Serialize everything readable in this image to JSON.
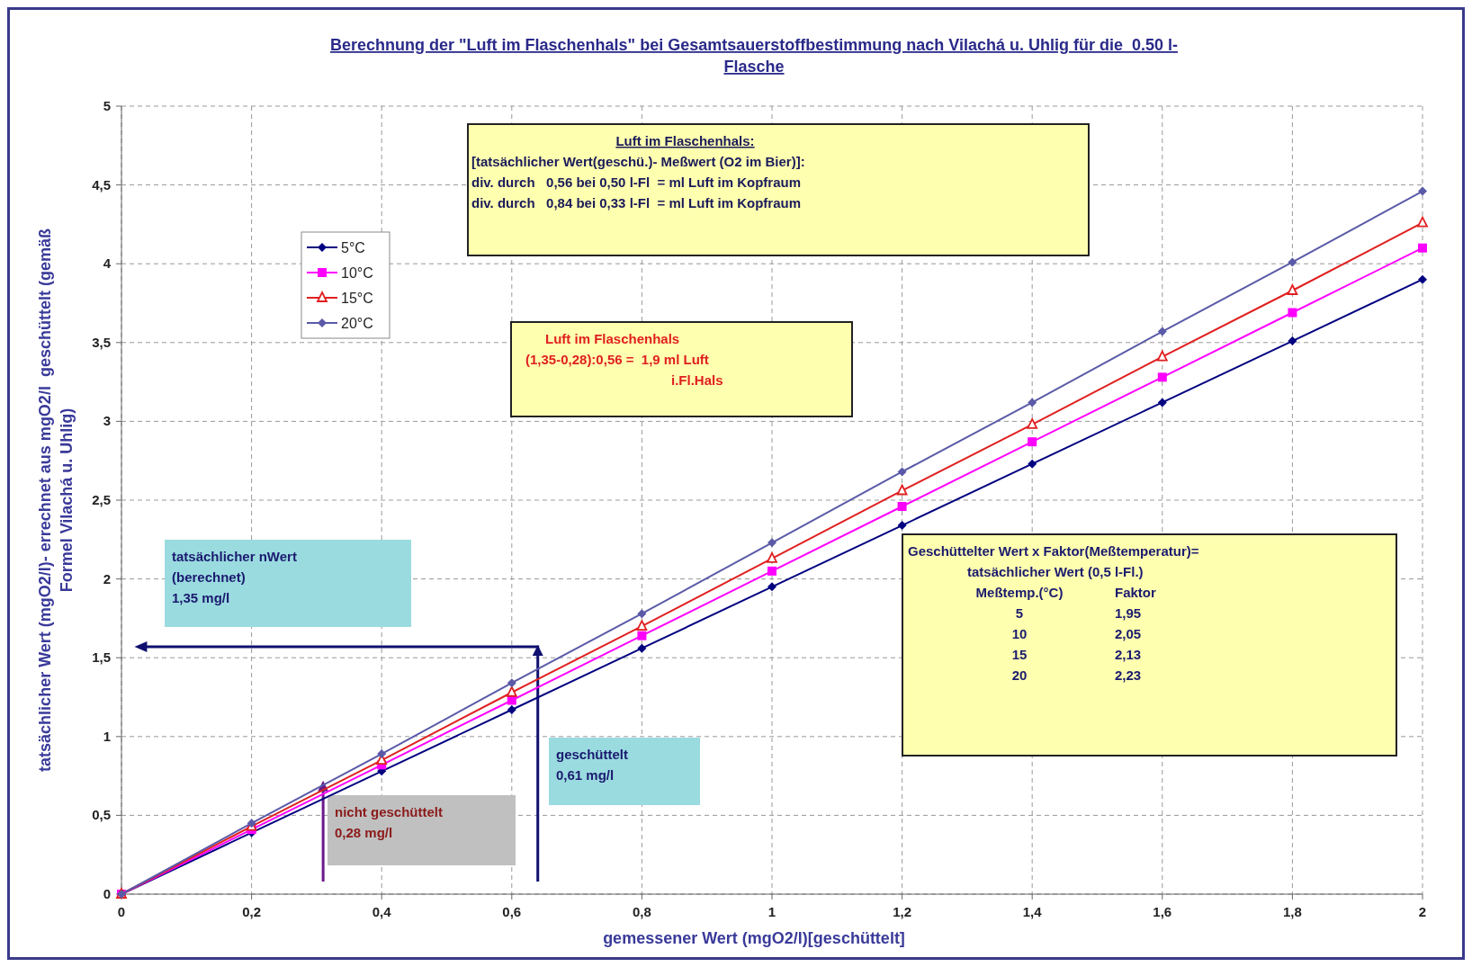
{
  "chart_data": {
    "type": "line",
    "title": "Berechnung der \"Luft im Flaschenhals\" bei Gesamtsauerstoffbestimmung nach Vilachá u. Uhlig für die  0.50 l-Flasche",
    "xlabel": "gemessener Wert (mgO2/l)[geschüttelt]",
    "ylabel": "tatsächlicher Wert (mgO2/l)- errechnet aus mgO2/l  geschüttelt (gemäß Formel Vilachá u. Uhlig)",
    "x": [
      0,
      0.2,
      0.4,
      0.6,
      0.8,
      1,
      1.2,
      1.4,
      1.6,
      1.8,
      2
    ],
    "series": [
      {
        "name": "5°C",
        "color": "#000080",
        "marker": "diamond",
        "values": [
          0,
          0.39,
          0.78,
          1.17,
          1.56,
          1.95,
          2.34,
          2.73,
          3.12,
          3.51,
          3.9
        ]
      },
      {
        "name": "10°C",
        "color": "#ff00ff",
        "marker": "square",
        "values": [
          0,
          0.41,
          0.82,
          1.23,
          1.64,
          2.05,
          2.46,
          2.87,
          3.28,
          3.69,
          4.1
        ]
      },
      {
        "name": "15°C",
        "color": "#e02020",
        "marker": "triangle",
        "values": [
          0,
          0.43,
          0.85,
          1.28,
          1.7,
          2.13,
          2.56,
          2.98,
          3.41,
          3.83,
          4.26
        ]
      },
      {
        "name": "20°C",
        "color": "#5a5aa8",
        "marker": "diamond",
        "values": [
          0,
          0.45,
          0.89,
          1.34,
          1.78,
          2.23,
          2.68,
          3.12,
          3.57,
          4.01,
          4.46
        ]
      }
    ],
    "xlim": [
      0,
      2
    ],
    "xticks": [
      0,
      {
        "value": 0.2,
        "label": "0,2"
      },
      {
        "value": 0.4,
        "label": "0,4"
      },
      {
        "value": 0.6,
        "label": "0,6"
      },
      {
        "value": 0.8,
        "label": "0,8"
      },
      1,
      {
        "value": 1.2,
        "label": "1,2"
      },
      {
        "value": 1.4,
        "label": "1,4"
      },
      {
        "value": 1.6,
        "label": "1,6"
      },
      {
        "value": 1.8,
        "label": "1,8"
      },
      2
    ],
    "ylim": [
      0,
      5
    ],
    "yticks": [
      0,
      {
        "value": 0.5,
        "label": "0,5"
      },
      1,
      {
        "value": 1.5,
        "label": "1,5"
      },
      2,
      {
        "value": 2.5,
        "label": "2,5"
      },
      3,
      {
        "value": 3.5,
        "label": "3,5"
      },
      4,
      {
        "value": 4.5,
        "label": "4,5"
      },
      5
    ],
    "grid": true,
    "legend": "top left",
    "line_style": "solid",
    "annotations": [
      "Luft im Flaschenhals:\n[tatsächlicher Wert(geschü.)- Meßwert (O2 im Bier)]:\ndiv. durch   0,56 bei 0,50 l-Fl  = ml Luft im Kopfraum\ndiv. durch   0,84 bei 0,33 l-Fl  = ml Luft im Kopfraum",
      "Luft im Flaschenhals\n(1,35-0,28):0,56 =  1,9 ml Luft\ni.Fl.Hals",
      "Geschüttelter Wert x Faktor(Meßtemperatur)=\ntatsächlicher Wert (0,5 l-Fl.)\nMeßtemp.(°C)\tFaktor\n5\t1,95\n10\t2,05\n15\t2,13\n20\t2,23",
      "tatsächlicher nWert\n(berechnet)\n1,35 mg/l",
      "geschüttelt\n0,61 mg/l",
      "nicht geschüttelt\n0,28 mg/l"
    ]
  }
}
